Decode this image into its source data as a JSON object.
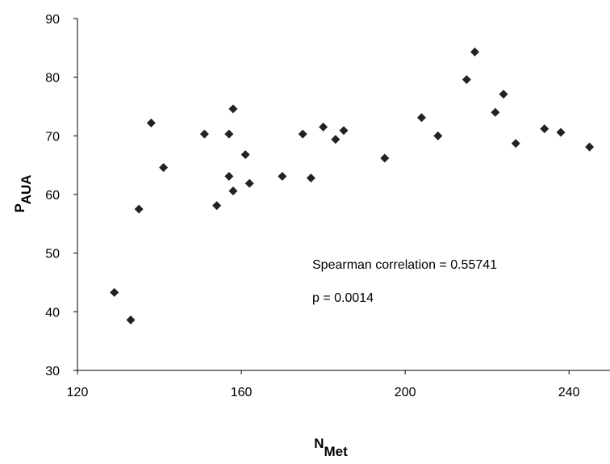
{
  "chart_data": {
    "type": "scatter",
    "title": "",
    "xlabel": "N",
    "xlabel_sub": "Met",
    "ylabel": "P",
    "ylabel_sub": "AUA",
    "xlim": [
      120,
      250
    ],
    "ylim": [
      30,
      90
    ],
    "xticks": [
      120,
      160,
      200,
      240
    ],
    "yticks": [
      30,
      40,
      50,
      60,
      70,
      80,
      90
    ],
    "grid": false,
    "marker": "diamond",
    "marker_color": "#222222",
    "annotations": [
      "Spearman correlation = 0.55741",
      "p = 0.0014"
    ],
    "points": [
      [
        129,
        43.3
      ],
      [
        133,
        38.6
      ],
      [
        135,
        57.5
      ],
      [
        138,
        72.2
      ],
      [
        141,
        64.6
      ],
      [
        151,
        70.3
      ],
      [
        154,
        58.1
      ],
      [
        157,
        70.3
      ],
      [
        157,
        63.1
      ],
      [
        158,
        74.6
      ],
      [
        158,
        60.6
      ],
      [
        161,
        66.8
      ],
      [
        162,
        61.9
      ],
      [
        170,
        63.1
      ],
      [
        175,
        70.3
      ],
      [
        177,
        62.8
      ],
      [
        180,
        71.5
      ],
      [
        183,
        69.4
      ],
      [
        185,
        70.9
      ],
      [
        195,
        66.2
      ],
      [
        204,
        73.1
      ],
      [
        208,
        70.0
      ],
      [
        215,
        79.6
      ],
      [
        217,
        84.3
      ],
      [
        222,
        74.0
      ],
      [
        224,
        77.1
      ],
      [
        227,
        68.7
      ],
      [
        234,
        71.2
      ],
      [
        238,
        70.6
      ],
      [
        245,
        68.1
      ]
    ]
  }
}
